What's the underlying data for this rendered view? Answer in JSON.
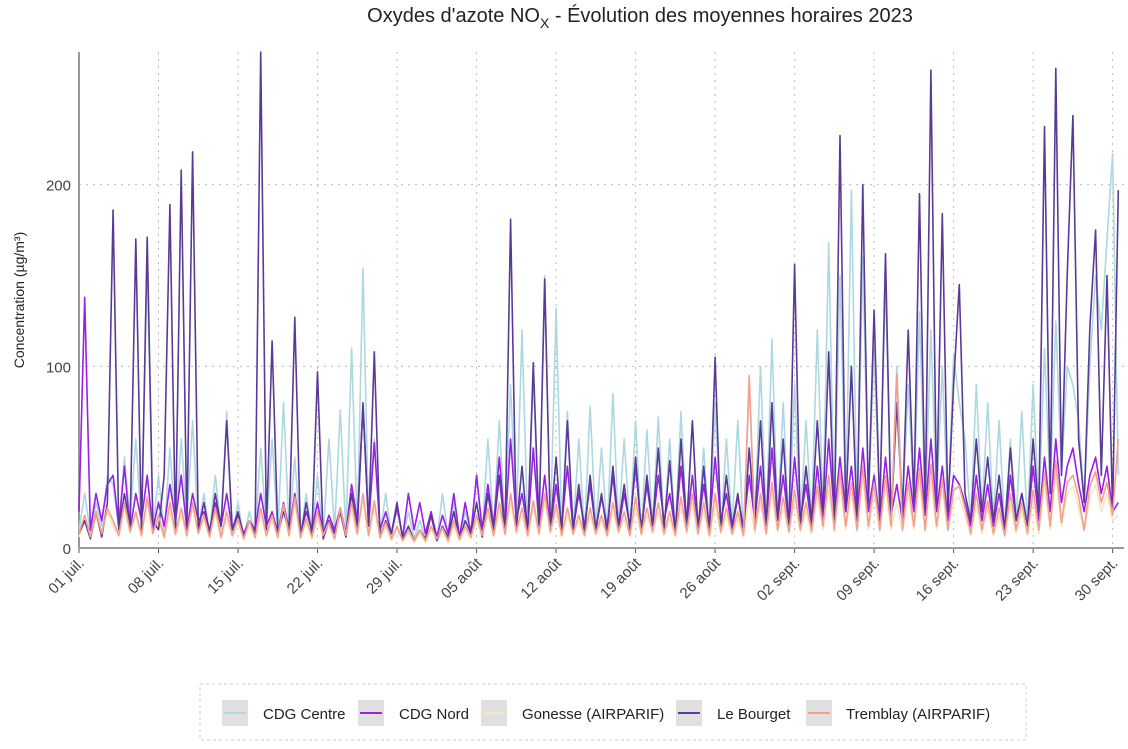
{
  "chart_data": {
    "type": "line",
    "title": "Oxydes d'azote NO",
    "title_subscript": "X",
    "title_rest": " - Évolution des moyennes horaires 2023",
    "y_label": "Concentration (µg/m³)",
    "xlim": [
      0,
      92
    ],
    "ylim": [
      0,
      273
    ],
    "yticks": [
      0,
      100,
      200
    ],
    "grid": true,
    "legend": "bottom",
    "xticks": [
      {
        "value": 0,
        "label": "01 juil."
      },
      {
        "value": 7,
        "label": "08 juil."
      },
      {
        "value": 14,
        "label": "15 juil."
      },
      {
        "value": 21,
        "label": "22 juil."
      },
      {
        "value": 28,
        "label": "29 juil."
      },
      {
        "value": 35,
        "label": "05 août"
      },
      {
        "value": 42,
        "label": "12 août"
      },
      {
        "value": 49,
        "label": "19 août"
      },
      {
        "value": 56,
        "label": "26 août"
      },
      {
        "value": 63,
        "label": "02 sept."
      },
      {
        "value": 70,
        "label": "09 sept."
      },
      {
        "value": 77,
        "label": "16 sept."
      },
      {
        "value": 84,
        "label": "23 sept."
      },
      {
        "value": 91,
        "label": "30 sept."
      }
    ],
    "x": [
      0,
      0.5,
      1,
      1.5,
      2,
      2.5,
      3,
      3.5,
      4,
      4.5,
      5,
      5.5,
      6,
      6.5,
      7,
      7.5,
      8,
      8.5,
      9,
      9.5,
      10,
      10.5,
      11,
      11.5,
      12,
      12.5,
      13,
      13.5,
      14,
      14.5,
      15,
      15.5,
      16,
      16.5,
      17,
      17.5,
      18,
      18.5,
      19,
      19.5,
      20,
      20.5,
      21,
      21.5,
      22,
      22.5,
      23,
      23.5,
      24,
      24.5,
      25,
      25.5,
      26,
      26.5,
      27,
      27.5,
      28,
      28.5,
      29,
      29.5,
      30,
      30.5,
      31,
      31.5,
      32,
      32.5,
      33,
      33.5,
      34,
      34.5,
      35,
      35.5,
      36,
      36.5,
      37,
      37.5,
      38,
      38.5,
      39,
      39.5,
      40,
      40.5,
      41,
      41.5,
      42,
      42.5,
      43,
      43.5,
      44,
      44.5,
      45,
      45.5,
      46,
      46.5,
      47,
      47.5,
      48,
      48.5,
      49,
      49.5,
      50,
      50.5,
      51,
      51.5,
      52,
      52.5,
      53,
      53.5,
      54,
      54.5,
      55,
      55.5,
      56,
      56.5,
      57,
      57.5,
      58,
      58.5,
      59,
      59.5,
      60,
      60.5,
      61,
      61.5,
      62,
      62.5,
      63,
      63.5,
      64,
      64.5,
      65,
      65.5,
      66,
      66.5,
      67,
      67.5,
      68,
      68.5,
      69,
      69.5,
      70,
      70.5,
      71,
      71.5,
      72,
      72.5,
      73,
      73.5,
      74,
      74.5,
      75,
      75.5,
      76,
      76.5,
      77,
      77.5,
      78,
      78.5,
      79,
      79.5,
      80,
      80.5,
      81,
      81.5,
      82,
      82.5,
      83,
      83.5,
      84,
      84.5,
      85,
      85.5,
      86,
      86.5,
      87,
      87.5,
      88,
      88.5,
      89,
      89.5,
      90,
      90.5,
      91,
      91.5
    ],
    "series": [
      {
        "name": "CDG Centre",
        "color": "#add8e0",
        "values": [
          10,
          30,
          8,
          25,
          12,
          40,
          35,
          10,
          50,
          15,
          60,
          12,
          159,
          10,
          40,
          8,
          55,
          10,
          60,
          15,
          70,
          10,
          30,
          8,
          40,
          10,
          75,
          8,
          25,
          6,
          20,
          8,
          55,
          10,
          60,
          8,
          80,
          10,
          50,
          6,
          30,
          8,
          40,
          6,
          60,
          10,
          76,
          8,
          110,
          10,
          154,
          12,
          60,
          8,
          30,
          6,
          25,
          5,
          20,
          5,
          15,
          5,
          20,
          4,
          30,
          6,
          25,
          5,
          20,
          8,
          40,
          8,
          60,
          10,
          70,
          10,
          90,
          12,
          120,
          10,
          95,
          12,
          150,
          10,
          132,
          12,
          75,
          10,
          60,
          8,
          78,
          10,
          55,
          8,
          85,
          12,
          60,
          10,
          70,
          8,
          65,
          12,
          72,
          10,
          60,
          8,
          75,
          12,
          70,
          10,
          55,
          8,
          80,
          10,
          60,
          12,
          70,
          8,
          90,
          15,
          100,
          12,
          115,
          15,
          80,
          10,
          90,
          12,
          70,
          15,
          120,
          20,
          168,
          15,
          150,
          20,
          197,
          15,
          160,
          25,
          110,
          20,
          149,
          15,
          100,
          20,
          90,
          25,
          130,
          20,
          120,
          25,
          100,
          20,
          106,
          80,
          60,
          15,
          90,
          20,
          80,
          15,
          70,
          10,
          60,
          15,
          75,
          12,
          90,
          20,
          110,
          30,
          125,
          40,
          100,
          90,
          70,
          25,
          100,
          150,
          120,
          170,
          217,
          40
        ]
      },
      {
        "name": "CDG Nord",
        "color": "#9b1fe8",
        "values": [
          20,
          138,
          10,
          30,
          15,
          35,
          40,
          12,
          45,
          10,
          30,
          15,
          40,
          10,
          25,
          12,
          35,
          15,
          40,
          10,
          30,
          15,
          20,
          10,
          25,
          12,
          30,
          10,
          18,
          8,
          15,
          10,
          30,
          12,
          20,
          8,
          25,
          10,
          30,
          8,
          20,
          10,
          25,
          8,
          18,
          10,
          22,
          8,
          35,
          15,
          78,
          12,
          58,
          10,
          20,
          8,
          22,
          6,
          30,
          10,
          25,
          8,
          20,
          6,
          18,
          8,
          30,
          6,
          25,
          8,
          40,
          10,
          35,
          12,
          50,
          10,
          60,
          15,
          30,
          10,
          55,
          12,
          40,
          10,
          35,
          12,
          45,
          10,
          30,
          12,
          35,
          10,
          28,
          12,
          40,
          10,
          30,
          12,
          45,
          10,
          35,
          12,
          40,
          15,
          30,
          10,
          45,
          12,
          40,
          10,
          35,
          12,
          50,
          15,
          30,
          10,
          28,
          12,
          40,
          15,
          45,
          12,
          55,
          15,
          40,
          12,
          50,
          15,
          35,
          12,
          45,
          15,
          60,
          18,
          50,
          20,
          45,
          15,
          55,
          20,
          40,
          15,
          50,
          18,
          35,
          15,
          45,
          20,
          55,
          18,
          60,
          20,
          45,
          15,
          40,
          35,
          25,
          12,
          40,
          15,
          35,
          12,
          30,
          10,
          40,
          15,
          30,
          12,
          45,
          15,
          50,
          20,
          60,
          25,
          45,
          55,
          35,
          20,
          40,
          50,
          30,
          45,
          20,
          25
        ]
      },
      {
        "name": "Gonesse (AIRPARIF)",
        "color": "#f5e6c4",
        "values": [
          6,
          15,
          5,
          18,
          8,
          20,
          12,
          6,
          22,
          8,
          18,
          6,
          25,
          8,
          15,
          5,
          20,
          7,
          18,
          6,
          22,
          8,
          15,
          6,
          20,
          5,
          16,
          6,
          14,
          5,
          12,
          5,
          18,
          6,
          15,
          5,
          20,
          6,
          25,
          5,
          14,
          5,
          16,
          6,
          12,
          5,
          18,
          6,
          20,
          7,
          25,
          6,
          22,
          5,
          12,
          4,
          10,
          4,
          8,
          3,
          8,
          3,
          10,
          4,
          9,
          3,
          12,
          4,
          10,
          5,
          15,
          6,
          18,
          6,
          20,
          7,
          25,
          8,
          18,
          6,
          22,
          7,
          25,
          8,
          20,
          6,
          18,
          7,
          15,
          6,
          18,
          7,
          15,
          6,
          20,
          8,
          16,
          6,
          22,
          7,
          18,
          8,
          20,
          7,
          16,
          6,
          22,
          8,
          25,
          7,
          20,
          6,
          24,
          8,
          18,
          7,
          16,
          6,
          28,
          8,
          25,
          7,
          30,
          9,
          22,
          8,
          26,
          9,
          20,
          8,
          28,
          10,
          32,
          9,
          35,
          10,
          30,
          9,
          38,
          10,
          30,
          9,
          34,
          10,
          25,
          9,
          30,
          10,
          36,
          9,
          38,
          10,
          32,
          9,
          26,
          28,
          18,
          7,
          24,
          8,
          22,
          7,
          18,
          6,
          24,
          8,
          20,
          7,
          26,
          8,
          35,
          10,
          40,
          12,
          30,
          34,
          22,
          9,
          28,
          35,
          20,
          30,
          15,
          18
        ]
      },
      {
        "name": "Le Bourget",
        "color": "#5b3a96",
        "values": [
          8,
          15,
          5,
          20,
          6,
          25,
          186,
          10,
          30,
          12,
          170,
          8,
          171,
          15,
          10,
          40,
          189,
          8,
          208,
          12,
          218,
          10,
          25,
          8,
          30,
          12,
          70,
          10,
          20,
          6,
          15,
          8,
          273,
          10,
          114,
          8,
          20,
          10,
          127,
          6,
          25,
          8,
          97,
          5,
          15,
          8,
          20,
          6,
          30,
          10,
          80,
          12,
          108,
          6,
          15,
          8,
          25,
          5,
          12,
          4,
          10,
          5,
          18,
          4,
          12,
          6,
          20,
          5,
          15,
          8,
          25,
          6,
          30,
          10,
          40,
          8,
          181,
          10,
          45,
          8,
          102,
          12,
          148,
          10,
          50,
          8,
          70,
          10,
          35,
          8,
          40,
          10,
          30,
          8,
          45,
          12,
          35,
          10,
          50,
          8,
          40,
          12,
          55,
          10,
          48,
          8,
          60,
          12,
          70,
          10,
          45,
          8,
          105,
          10,
          40,
          12,
          30,
          8,
          55,
          15,
          70,
          12,
          80,
          15,
          60,
          10,
          156,
          12,
          45,
          15,
          70,
          20,
          108,
          15,
          227,
          20,
          100,
          15,
          200,
          25,
          131,
          20,
          162,
          15,
          80,
          20,
          120,
          25,
          195,
          20,
          263,
          25,
          184,
          20,
          90,
          145,
          30,
          15,
          60,
          20,
          50,
          15,
          40,
          10,
          55,
          15,
          30,
          12,
          60,
          20,
          232,
          30,
          264,
          40,
          150,
          238,
          60,
          25,
          122,
          175,
          40,
          150,
          20,
          197
        ]
      },
      {
        "name": "Tremblay (AIRPARIF)",
        "color": "#f4a08a",
        "values": [
          8,
          18,
          6,
          20,
          8,
          22,
          15,
          7,
          25,
          9,
          20,
          7,
          28,
          8,
          18,
          6,
          25,
          8,
          22,
          7,
          25,
          8,
          18,
          6,
          22,
          6,
          20,
          7,
          16,
          5,
          15,
          6,
          22,
          7,
          18,
          6,
          24,
          7,
          28,
          6,
          16,
          6,
          20,
          7,
          14,
          5,
          22,
          7,
          25,
          8,
          30,
          7,
          26,
          6,
          14,
          5,
          12,
          4,
          10,
          4,
          10,
          4,
          12,
          5,
          11,
          4,
          15,
          5,
          12,
          6,
          18,
          7,
          22,
          7,
          25,
          8,
          30,
          9,
          22,
          7,
          26,
          8,
          30,
          9,
          24,
          7,
          22,
          8,
          18,
          7,
          22,
          8,
          18,
          7,
          25,
          9,
          20,
          7,
          28,
          8,
          22,
          9,
          25,
          8,
          20,
          7,
          28,
          9,
          30,
          8,
          25,
          7,
          30,
          9,
          22,
          8,
          20,
          7,
          95,
          10,
          30,
          8,
          36,
          10,
          28,
          9,
          32,
          10,
          25,
          9,
          34,
          12,
          40,
          10,
          42,
          12,
          36,
          10,
          45,
          12,
          36,
          10,
          40,
          12,
          96,
          10,
          36,
          12,
          44,
          10,
          46,
          12,
          38,
          10,
          32,
          34,
          22,
          8,
          30,
          10,
          26,
          8,
          22,
          7,
          30,
          10,
          25,
          8,
          32,
          10,
          42,
          12,
          48,
          14,
          36,
          40,
          28,
          10,
          34,
          42,
          25,
          36,
          18,
          60
        ]
      }
    ]
  }
}
